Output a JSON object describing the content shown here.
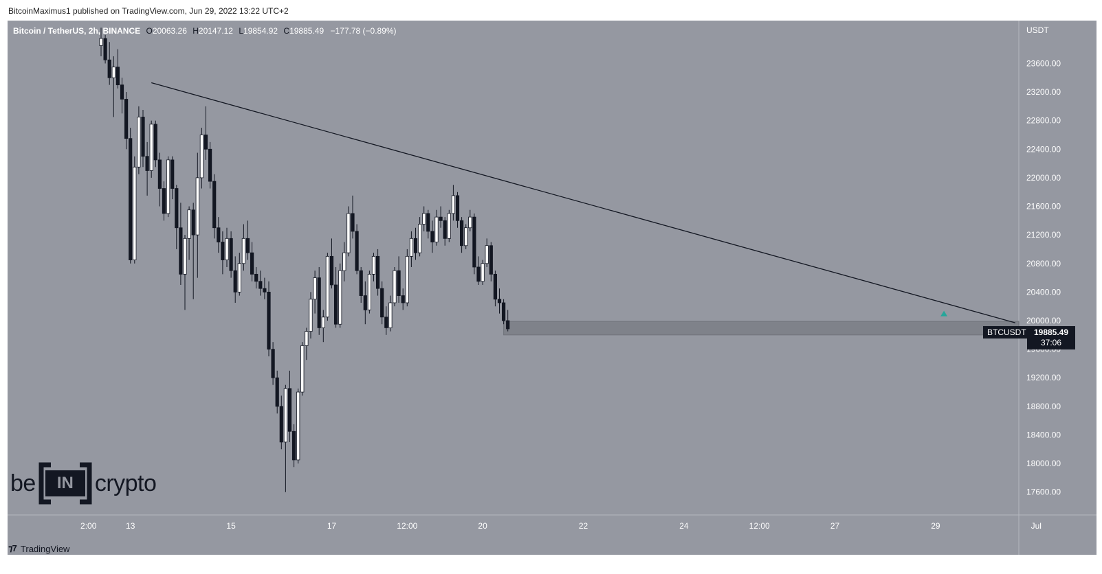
{
  "header": {
    "publisher_line": "BitcoinMaximus1 published on TradingView.com, Jun 29, 2022 13:22 UTC+2"
  },
  "legend": {
    "symbol": "Bitcoin / TetherUS, 2h, BINANCE",
    "o_label": "O",
    "o_value": "20063.26",
    "h_label": "H",
    "h_value": "20147.12",
    "l_label": "L",
    "l_value": "19854.92",
    "c_label": "C",
    "c_value": "19885.49",
    "change": "−177.78 (−0.89%)"
  },
  "price_axis": {
    "currency": "USDT",
    "ticks": [
      "23600.00",
      "23200.00",
      "22800.00",
      "22400.00",
      "22000.00",
      "21600.00",
      "21200.00",
      "20800.00",
      "20400.00",
      "20000.00",
      "19600.00",
      "19200.00",
      "18800.00",
      "18400.00",
      "18000.00",
      "17600.00"
    ]
  },
  "last_price": {
    "symbol_tag": "BTCUSDT",
    "price": "19885.49",
    "countdown": "37:06"
  },
  "branding": {
    "logo_left": "be",
    "logo_mid": "IN",
    "logo_right": "crypto",
    "footer": "TradingView"
  },
  "colors": {
    "background": "#9598a1",
    "up_candle": "#ffffff",
    "down_candle": "#131722",
    "zone": "#7f828a",
    "marker": "#26a69a"
  },
  "chart_data": {
    "type": "candlestick",
    "title": "Bitcoin / TetherUS, 2h, BINANCE",
    "ylabel": "USDT",
    "ylim": [
      17280,
      24200
    ],
    "x_ticks": [
      {
        "label": "2:00",
        "t": -3
      },
      {
        "label": "13",
        "t": 7
      },
      {
        "label": "15",
        "t": 31
      },
      {
        "label": "17",
        "t": 55
      },
      {
        "label": "12:00",
        "t": 73
      },
      {
        "label": "20",
        "t": 91
      },
      {
        "label": "22",
        "t": 115
      },
      {
        "label": "24",
        "t": 139
      },
      {
        "label": "12:00",
        "t": 157
      },
      {
        "label": "27",
        "t": 175
      },
      {
        "label": "29",
        "t": 199
      },
      {
        "label": "Jul",
        "t": 223
      }
    ],
    "trendline": {
      "from": {
        "t": 12,
        "price": 23330
      },
      "to": {
        "t": 218,
        "price": 19970
      }
    },
    "support_zone": {
      "from_t": 96,
      "to_t": 248,
      "low": 19800,
      "high": 19990
    },
    "marker": {
      "t": 201,
      "price": 20100,
      "shape": "triangle-up"
    },
    "candles": [
      [
        23850,
        24100,
        23700,
        23950
      ],
      [
        23950,
        24000,
        23600,
        23650
      ],
      [
        23650,
        23900,
        23300,
        23400
      ],
      [
        23400,
        23700,
        22850,
        23550
      ],
      [
        23550,
        23800,
        23250,
        23300
      ],
      [
        23300,
        23400,
        22900,
        23100
      ],
      [
        23100,
        23200,
        22400,
        22550
      ],
      [
        22550,
        22700,
        20800,
        20850
      ],
      [
        20850,
        22300,
        20800,
        22150
      ],
      [
        22150,
        23000,
        22050,
        22850
      ],
      [
        22850,
        22950,
        22150,
        22300
      ],
      [
        22300,
        22500,
        21750,
        22100
      ],
      [
        22100,
        22800,
        22000,
        22750
      ],
      [
        22750,
        22800,
        22150,
        22250
      ],
      [
        22250,
        22350,
        21600,
        21850
      ],
      [
        21850,
        21950,
        21400,
        21500
      ],
      [
        21500,
        22300,
        21450,
        22250
      ],
      [
        22250,
        22300,
        21700,
        21850
      ],
      [
        21850,
        21900,
        21000,
        21300
      ],
      [
        21300,
        21650,
        20500,
        20650
      ],
      [
        20650,
        21200,
        20150,
        21150
      ],
      [
        21150,
        21600,
        20850,
        21550
      ],
      [
        21550,
        21650,
        20300,
        21200
      ],
      [
        21200,
        22350,
        20600,
        22000
      ],
      [
        22000,
        22700,
        21850,
        22600
      ],
      [
        22600,
        23000,
        22250,
        22400
      ],
      [
        22400,
        22500,
        21850,
        21950
      ],
      [
        21950,
        22050,
        21150,
        21300
      ],
      [
        21300,
        21450,
        20950,
        21100
      ],
      [
        21100,
        21250,
        20650,
        20850
      ],
      [
        20850,
        21300,
        20750,
        21150
      ],
      [
        21150,
        21250,
        20600,
        20700
      ],
      [
        20700,
        20900,
        20250,
        20400
      ],
      [
        20400,
        20950,
        20350,
        20800
      ],
      [
        20800,
        21350,
        20700,
        21150
      ],
      [
        21150,
        21400,
        20850,
        20950
      ],
      [
        20950,
        21100,
        20550,
        20650
      ],
      [
        20650,
        20750,
        20450,
        20550
      ],
      [
        20550,
        20700,
        20350,
        20450
      ],
      [
        20450,
        20600,
        20300,
        20400
      ],
      [
        20400,
        20550,
        19500,
        19600
      ],
      [
        19600,
        19700,
        19100,
        19200
      ],
      [
        19200,
        19300,
        18700,
        18800
      ],
      [
        18800,
        18950,
        18200,
        18300
      ],
      [
        18300,
        19100,
        17600,
        19050
      ],
      [
        19050,
        19300,
        18300,
        18450
      ],
      [
        18450,
        18550,
        17950,
        18050
      ],
      [
        18050,
        19050,
        18000,
        19000
      ],
      [
        19000,
        19700,
        18950,
        19650
      ],
      [
        19650,
        19900,
        19450,
        19850
      ],
      [
        19850,
        20400,
        19750,
        20300
      ],
      [
        20300,
        20700,
        20100,
        20600
      ],
      [
        20600,
        20750,
        19800,
        19900
      ],
      [
        19900,
        20150,
        19700,
        20050
      ],
      [
        20050,
        20950,
        20000,
        20900
      ],
      [
        20900,
        21150,
        20450,
        20500
      ],
      [
        20500,
        20750,
        19900,
        19950
      ],
      [
        19950,
        20800,
        19900,
        20700
      ],
      [
        20700,
        21100,
        20550,
        20950
      ],
      [
        20950,
        21600,
        20900,
        21500
      ],
      [
        21500,
        21750,
        21150,
        21250
      ],
      [
        21250,
        21350,
        20650,
        20700
      ],
      [
        20700,
        20750,
        20250,
        20350
      ],
      [
        20350,
        20550,
        19950,
        20150
      ],
      [
        20150,
        20700,
        20100,
        20650
      ],
      [
        20650,
        20950,
        20550,
        20900
      ],
      [
        20900,
        21000,
        20350,
        20450
      ],
      [
        20450,
        20550,
        19950,
        20050
      ],
      [
        20050,
        20200,
        19800,
        19900
      ],
      [
        19900,
        20350,
        19850,
        20250
      ],
      [
        20250,
        20750,
        20200,
        20700
      ],
      [
        20700,
        20900,
        20250,
        20350
      ],
      [
        20350,
        20450,
        20150,
        20250
      ],
      [
        20250,
        21000,
        20200,
        20900
      ],
      [
        20900,
        21250,
        20750,
        21150
      ],
      [
        21150,
        21300,
        20850,
        20950
      ],
      [
        20950,
        21450,
        20900,
        21350
      ],
      [
        21350,
        21600,
        21250,
        21500
      ],
      [
        21500,
        21550,
        21150,
        21250
      ],
      [
        21250,
        21400,
        20950,
        21100
      ],
      [
        21100,
        21550,
        21050,
        21450
      ],
      [
        21450,
        21600,
        21300,
        21400
      ],
      [
        21400,
        21450,
        21050,
        21150
      ],
      [
        21150,
        21550,
        21100,
        21500
      ],
      [
        21500,
        21900,
        21400,
        21750
      ],
      [
        21750,
        21800,
        21300,
        21400
      ],
      [
        21400,
        21450,
        20950,
        21050
      ],
      [
        21050,
        21350,
        21000,
        21300
      ],
      [
        21300,
        21550,
        21250,
        21450
      ],
      [
        21450,
        21500,
        20650,
        20750
      ],
      [
        20750,
        20900,
        20500,
        20550
      ],
      [
        20550,
        20850,
        20500,
        20800
      ],
      [
        20800,
        21150,
        20750,
        21050
      ],
      [
        21050,
        21100,
        20550,
        20650
      ],
      [
        20650,
        20700,
        20200,
        20300
      ],
      [
        20300,
        20450,
        20100,
        20250
      ],
      [
        20250,
        20300,
        19950,
        20000
      ],
      [
        20000,
        20150,
        19850,
        19885
      ]
    ]
  }
}
